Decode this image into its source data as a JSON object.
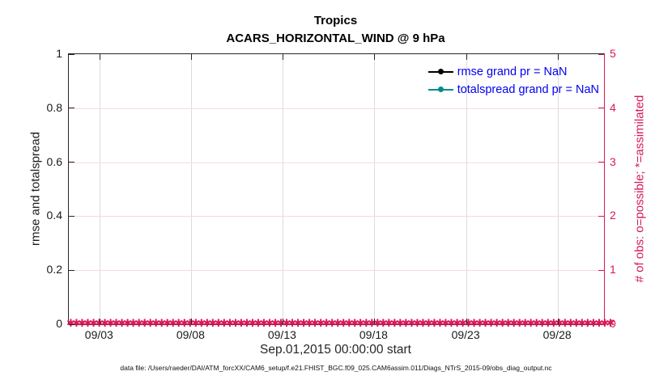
{
  "colors": {
    "crimson": "#D7195C",
    "teal": "#008B8B",
    "legend_text_blue": "#0000EE",
    "axis_dark": "#262626",
    "grid_vertical": "#DCDCDC",
    "grid_horizontal": "#F7D8E3",
    "background": "#FFFFFF"
  },
  "chart_data": {
    "type": "line",
    "title": "Tropics",
    "subtitle": "ACARS_HORIZONTAL_WIND @ 9 hPa",
    "xlabel": "Sep.01,2015 00:00:00 start",
    "ylabel_left": "rmse and totalspread",
    "ylabel_right": "# of obs: o=possible; *=assimilated",
    "ylim_left": [
      0,
      1
    ],
    "yticks_left": [
      0,
      0.2,
      0.4,
      0.6,
      0.8,
      1
    ],
    "ylim_right": [
      0,
      5
    ],
    "yticks_right": [
      0,
      1,
      2,
      3,
      4,
      5
    ],
    "xticks": [
      {
        "label": "09/03",
        "f": 0.058
      },
      {
        "label": "09/08",
        "f": 0.229
      },
      {
        "label": "09/13",
        "f": 0.4
      },
      {
        "label": "09/18",
        "f": 0.571
      },
      {
        "label": "09/23",
        "f": 0.743
      },
      {
        "label": "09/28",
        "f": 0.914
      }
    ],
    "grid": true,
    "legend_position": "top-right",
    "series": [
      {
        "name": "rmse grand pr = NaN",
        "color": "#000000",
        "marker": "circle",
        "grand_pr": "NaN",
        "values": []
      },
      {
        "name": "totalspread grand pr = NaN",
        "color": "#008B8B",
        "marker": "circle",
        "grand_pr": "NaN",
        "values": []
      }
    ],
    "obs_markers": {
      "description": "observation counts (possible and assimilated) plotted on right axis, all equal to 0 across entire time range",
      "value": 0,
      "count": 96,
      "glyph": "✱",
      "color": "#D7195C"
    }
  },
  "caption": "data file: /Users/raeder/DAI/ATM_forcXX/CAM6_setup/f.e21.FHIST_BGC.f09_025.CAM6assim.011/Diags_NTrS_2015-09/obs_diag_output.nc"
}
